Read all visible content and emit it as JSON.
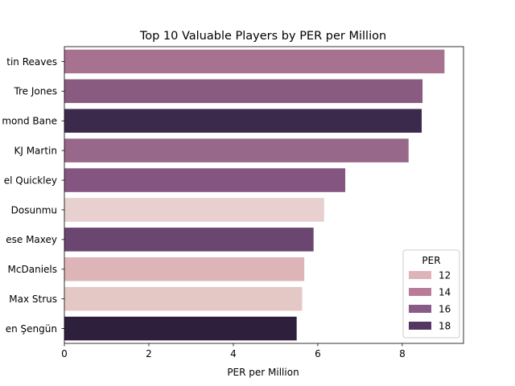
{
  "chart_data": {
    "type": "bar",
    "orientation": "horizontal",
    "title": "Top 10 Valuable Players by PER per Million",
    "xlabel": "PER per Million",
    "ylabel": "",
    "xlim": [
      0,
      9.45
    ],
    "xticks": [
      0,
      2,
      4,
      6,
      8
    ],
    "grid": false,
    "categories": [
      "tin Reaves",
      "Tre Jones",
      "mond Bane",
      "KJ Martin",
      "el Quickley",
      "Dosunmu",
      "ese Maxey",
      "McDaniels",
      "Max Strus",
      "en Şengün"
    ],
    "values": [
      9.0,
      8.48,
      8.46,
      8.15,
      6.65,
      6.15,
      5.9,
      5.68,
      5.63,
      5.5
    ],
    "colors": [
      "#a7728f",
      "#895b80",
      "#3c2a4d",
      "#98688a",
      "#845580",
      "#e7d0cf",
      "#6b4670",
      "#ddb4b8",
      "#e4c8c6",
      "#2e1f3c"
    ],
    "legend": {
      "title": "PER",
      "position": "lower-right",
      "entries": [
        {
          "label": "12",
          "color": "#ddb4b8"
        },
        {
          "label": "14",
          "color": "#b97c98"
        },
        {
          "label": "16",
          "color": "#875c86"
        },
        {
          "label": "18",
          "color": "#523762"
        }
      ]
    }
  }
}
